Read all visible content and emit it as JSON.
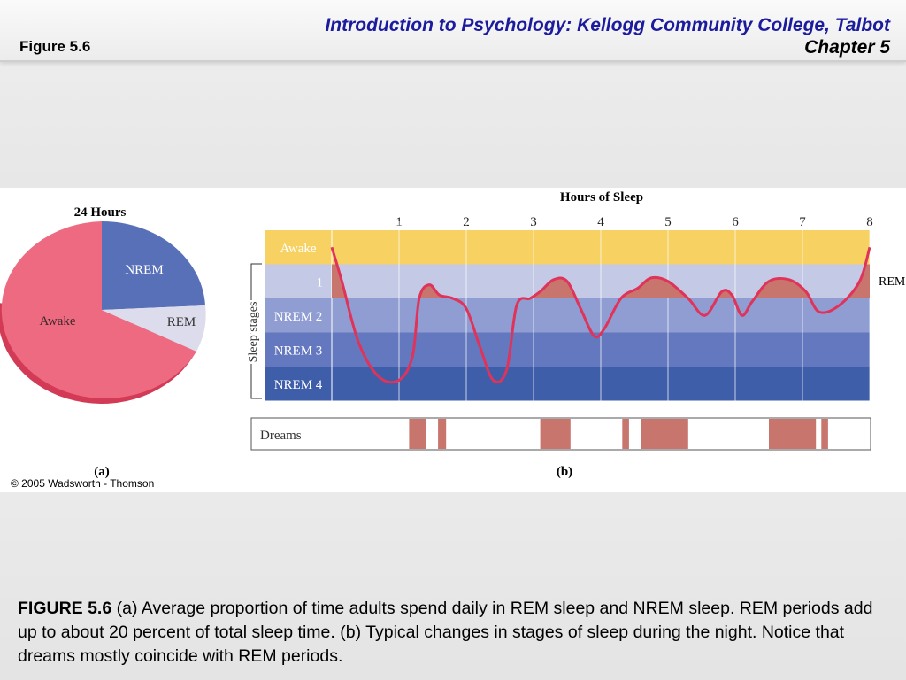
{
  "header": {
    "figure_label": "Figure 5.6",
    "course_title": "Introduction to Psychology: Kellogg Community College, Talbot",
    "chapter": "Chapter 5"
  },
  "pie": {
    "title": "24 Hours",
    "slices": [
      {
        "label": "Awake",
        "color": "#e8506a"
      },
      {
        "label": "NREM",
        "color": "#5a72b8"
      },
      {
        "label": "REM",
        "color": "#dcdcec"
      }
    ],
    "panel_label": "(a)"
  },
  "chart_data": {
    "type": "line",
    "title": "Hours of Sleep",
    "xlabel": "Hours of Sleep",
    "ylabel": "Sleep stages",
    "x_ticks": [
      "1",
      "2",
      "3",
      "4",
      "5",
      "6",
      "7",
      "8"
    ],
    "xlim": [
      0,
      8
    ],
    "stages": [
      "Awake",
      "1",
      "NREM 2",
      "NREM 3",
      "NREM 4"
    ],
    "stage_colors": [
      "#f7d162",
      "#c4c9e6",
      "#8f9dd2",
      "#6478bf",
      "#3e5ea9"
    ],
    "series_label": "REM",
    "series": [
      {
        "x": 0.0,
        "y": 0.0
      },
      {
        "x": 0.15,
        "y": 1.0
      },
      {
        "x": 0.4,
        "y": 2.8
      },
      {
        "x": 0.7,
        "y": 3.8
      },
      {
        "x": 1.0,
        "y": 3.9
      },
      {
        "x": 1.2,
        "y": 3.2
      },
      {
        "x": 1.3,
        "y": 1.5
      },
      {
        "x": 1.45,
        "y": 1.1
      },
      {
        "x": 1.6,
        "y": 1.4
      },
      {
        "x": 1.8,
        "y": 1.5
      },
      {
        "x": 2.0,
        "y": 1.8
      },
      {
        "x": 2.2,
        "y": 2.9
      },
      {
        "x": 2.4,
        "y": 3.9
      },
      {
        "x": 2.6,
        "y": 3.6
      },
      {
        "x": 2.75,
        "y": 1.7
      },
      {
        "x": 2.95,
        "y": 1.5
      },
      {
        "x": 3.1,
        "y": 1.3
      },
      {
        "x": 3.3,
        "y": 0.95
      },
      {
        "x": 3.5,
        "y": 1.0
      },
      {
        "x": 3.7,
        "y": 1.8
      },
      {
        "x": 3.9,
        "y": 2.6
      },
      {
        "x": 4.05,
        "y": 2.4
      },
      {
        "x": 4.3,
        "y": 1.5
      },
      {
        "x": 4.55,
        "y": 1.2
      },
      {
        "x": 4.75,
        "y": 0.9
      },
      {
        "x": 5.0,
        "y": 1.0
      },
      {
        "x": 5.3,
        "y": 1.5
      },
      {
        "x": 5.55,
        "y": 2.0
      },
      {
        "x": 5.8,
        "y": 1.3
      },
      {
        "x": 5.95,
        "y": 1.4
      },
      {
        "x": 6.1,
        "y": 2.0
      },
      {
        "x": 6.25,
        "y": 1.6
      },
      {
        "x": 6.5,
        "y": 1.0
      },
      {
        "x": 6.8,
        "y": 0.95
      },
      {
        "x": 7.05,
        "y": 1.3
      },
      {
        "x": 7.25,
        "y": 1.9
      },
      {
        "x": 7.55,
        "y": 1.7
      },
      {
        "x": 7.85,
        "y": 1.0
      },
      {
        "x": 8.0,
        "y": 0.0
      }
    ],
    "dreams_label": "Dreams",
    "dream_periods": [
      [
        1.15,
        1.4
      ],
      [
        1.58,
        1.7
      ],
      [
        3.1,
        3.55
      ],
      [
        4.32,
        4.42
      ],
      [
        4.6,
        5.3
      ],
      [
        6.5,
        7.2
      ],
      [
        7.28,
        7.38
      ]
    ],
    "rem_color": "#c8756e",
    "line_color": "#e0335a",
    "panel_label": "(b)"
  },
  "copyright": "© 2005 Wadsworth - Thomson",
  "caption": {
    "label": "FIGURE 5.6",
    "text": " (a) Average proportion of time adults spend daily in REM sleep and NREM sleep. REM periods add up to about 20 percent of total sleep  time. (b) Typical changes in stages of sleep during the night. Notice that dreams mostly coincide with REM periods."
  }
}
